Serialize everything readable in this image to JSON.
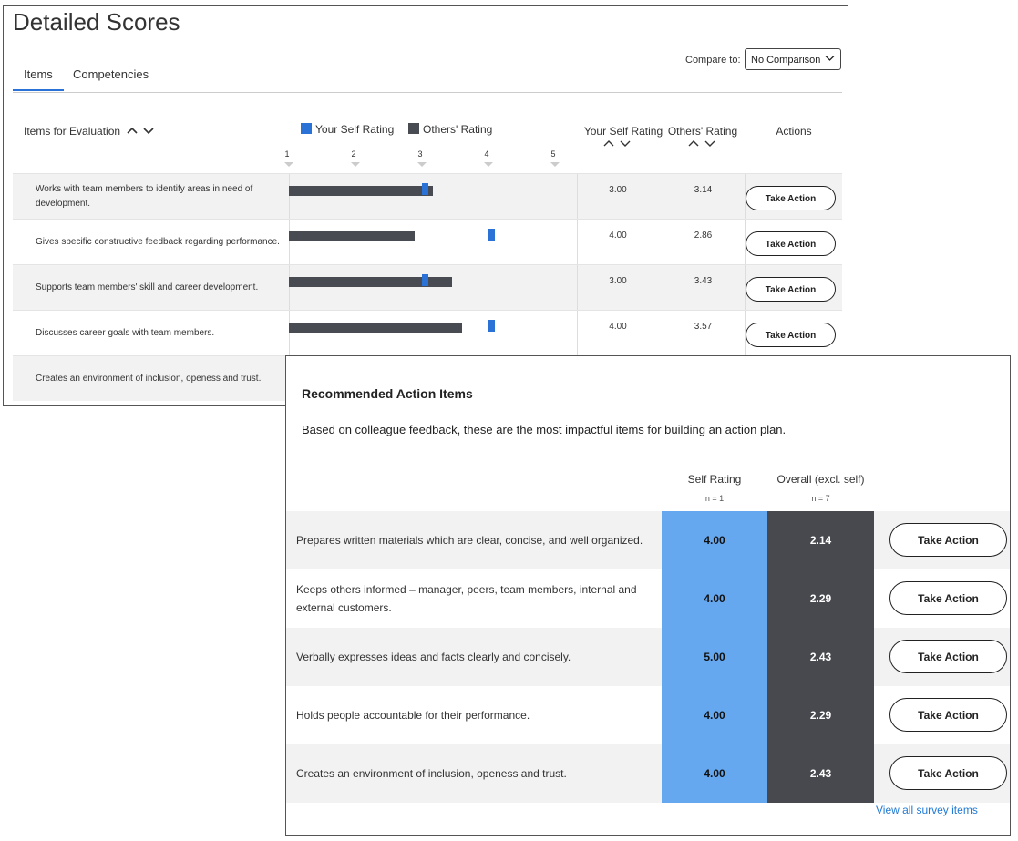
{
  "detailed_scores": {
    "title": "Detailed Scores",
    "tabs": [
      {
        "label": "Items",
        "active": true
      },
      {
        "label": "Competencies",
        "active": false
      }
    ],
    "compare": {
      "label": "Compare to:",
      "value": "No Comparison"
    },
    "table_header": {
      "items_label": "Items for Evaluation",
      "legend_self": "Your Self Rating",
      "legend_others": "Others' Rating",
      "col_self": "Your Self Rating",
      "col_others": "Others' Rating",
      "col_actions": "Actions"
    },
    "scale": [
      "1",
      "2",
      "3",
      "4",
      "5"
    ],
    "rows": [
      {
        "label": "Works with team members to identify areas in need of development.",
        "self": "3.00",
        "others": "3.14",
        "action": "Take Action"
      },
      {
        "label": "Gives specific constructive feedback regarding performance.",
        "self": "4.00",
        "others": "2.86",
        "action": "Take Action"
      },
      {
        "label": "Supports team members' skill and career development.",
        "self": "3.00",
        "others": "3.43",
        "action": "Take Action"
      },
      {
        "label": "Discusses career goals with team members.",
        "self": "4.00",
        "others": "3.57",
        "action": "Take Action"
      },
      {
        "label": "Creates an environment of inclusion, openess and trust.",
        "self": "",
        "others": "",
        "action": ""
      }
    ]
  },
  "recommended": {
    "title": "Recommended Action Items",
    "description": "Based on colleague feedback, these are the most impactful items for building an action plan.",
    "col_self": "Self Rating",
    "col_self_n": "n = 1",
    "col_overall": "Overall (excl. self)",
    "col_overall_n": "n = 7",
    "rows": [
      {
        "label": "Prepares written materials which are clear, concise, and well organized.",
        "self": "4.00",
        "overall": "2.14",
        "action": "Take Action"
      },
      {
        "label": "Keeps others informed – manager, peers, team members, internal and external customers.",
        "self": "4.00",
        "overall": "2.29",
        "action": "Take Action"
      },
      {
        "label": "Verbally expresses ideas and facts clearly and concisely.",
        "self": "5.00",
        "overall": "2.43",
        "action": "Take Action"
      },
      {
        "label": "Holds people accountable for their performance.",
        "self": "4.00",
        "overall": "2.29",
        "action": "Take Action"
      },
      {
        "label": "Creates an environment of inclusion, openess and trust.",
        "self": "4.00",
        "overall": "2.43",
        "action": "Take Action"
      }
    ],
    "view_all": "View all survey items"
  },
  "colors": {
    "self": "#2a72d6",
    "others": "#484b52",
    "self_cell": "#66a8f0",
    "overall_cell": "#48494e",
    "link": "#1f7ad6"
  },
  "icons": {
    "sort": "chevron-up-down-icon",
    "select": "chevron-down-icon",
    "scale_marker": "triangle-down-icon"
  }
}
